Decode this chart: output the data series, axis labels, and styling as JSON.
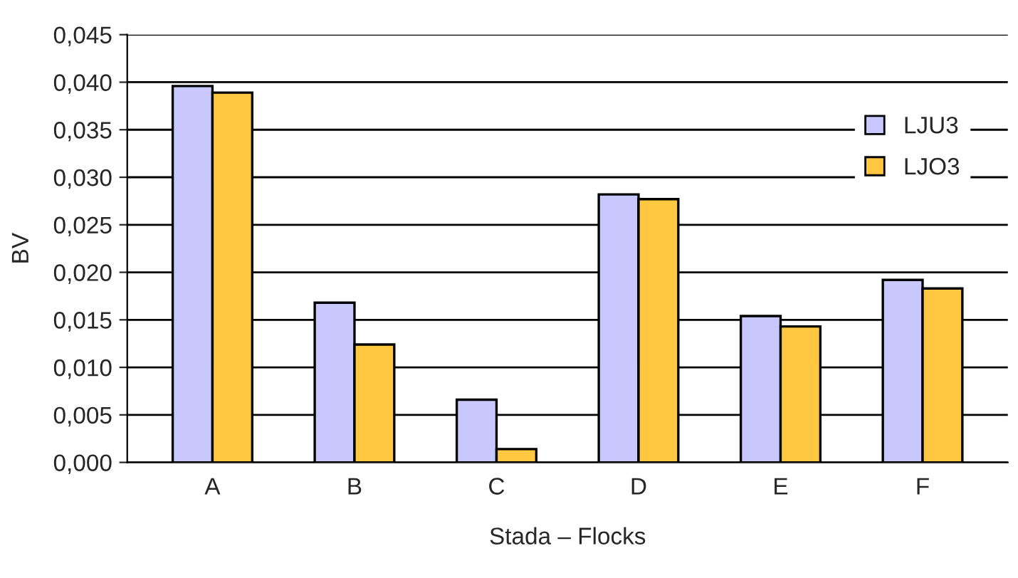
{
  "chart_data": {
    "type": "bar",
    "xlabel": "Stada – Flocks",
    "ylabel": "BV",
    "categories": [
      "A",
      "B",
      "C",
      "D",
      "E",
      "F"
    ],
    "series": [
      {
        "name": "LJU3",
        "color": "#c8c8ff",
        "values": [
          0.0396,
          0.0168,
          0.0066,
          0.0282,
          0.0154,
          0.0192
        ]
      },
      {
        "name": "LJO3",
        "color": "#ffc840",
        "values": [
          0.0389,
          0.0124,
          0.0014,
          0.0277,
          0.0143,
          0.0183
        ]
      }
    ],
    "ylim": [
      0,
      0.045
    ],
    "yticks": [
      {
        "value": 0,
        "label": "0,000"
      },
      {
        "value": 0.005,
        "label": "0,005"
      },
      {
        "value": 0.01,
        "label": "0,010"
      },
      {
        "value": 0.015,
        "label": "0,015"
      },
      {
        "value": 0.02,
        "label": "0,020"
      },
      {
        "value": 0.025,
        "label": "0,025"
      },
      {
        "value": 0.03,
        "label": "0,030"
      },
      {
        "value": 0.035,
        "label": "0,035"
      },
      {
        "value": 0.04,
        "label": "0,040"
      },
      {
        "value": 0.045,
        "label": "0,045"
      }
    ],
    "grid": "y",
    "legend": "top right"
  }
}
